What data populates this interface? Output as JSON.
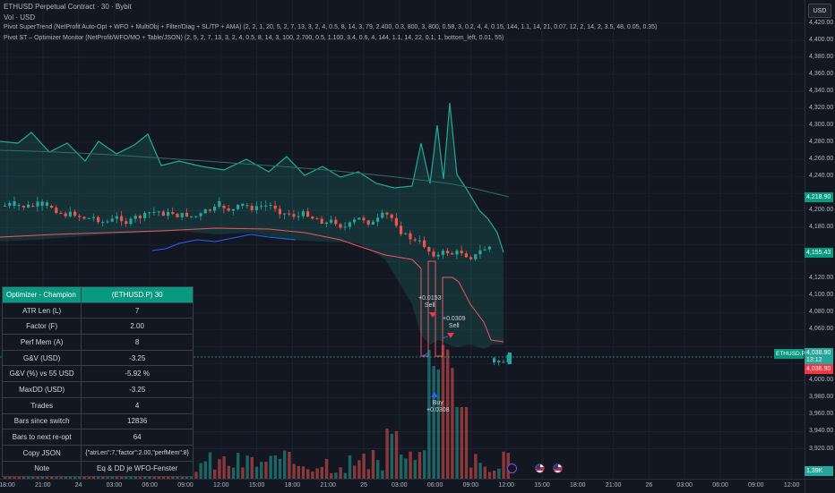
{
  "header": {
    "symbol_line": "ETHUSD Perpetual Contract · 30 · Bybit",
    "vol_line": "Vol · USD",
    "indicator1": "Pivot SuperTrend (NetProfit Auto-Opt + WFO + MultiObj + Filter/Diag + SL/TP + AMA) (2, 2, 1, 20, 5, 2, 7, 13, 3, 2, 4, 0.5, 8, 14, 3, 79, 2.400, 0.3, 800, 3, 800, 0.58, 3, 0.2, 4, 4, 0.15, 144, 1.1, 14, 21, 0.07, 12, 2, 14, 2, 3.5, 48, 0.05, 0.35)",
    "indicator2": "Pivot ST – Optimizer Monitor (NetProfit/WFO/MO + Table/JSON) (2, 5, 2, 7, 13, 3, 2, 4, 0.5, 8, 14, 3, 100, 2.700, 0.5, 1.100, 3.4, 0.6, 4, 144, 1.1, 14, 22, 0.1, 1, bottom_left, 0.01, 55)"
  },
  "price_scale": {
    "currency_button": "USD",
    "ticks": [
      "4,420.00",
      "4,400.00",
      "4,380.00",
      "4,360.00",
      "4,340.00",
      "4,320.00",
      "4,300.00",
      "4,280.00",
      "4,260.00",
      "4,240.00",
      "4,200.00",
      "4,180.00",
      "4,120.00",
      "4,100.00",
      "4,080.00",
      "4,060.00",
      "4,000.00",
      "3,980.00",
      "3,960.00",
      "3,940.00",
      "3,920.00"
    ],
    "tags": {
      "upper_band": "4,218.90",
      "mid_band": "4,155.43",
      "last_price": "4,038.90",
      "countdown": "13:12",
      "trail": "4,036.90",
      "volume": "1,39K"
    },
    "symbol_tag": "ETHUSD.P"
  },
  "time_axis": [
    "18:00",
    "21:00",
    "24",
    "03:00",
    "06:00",
    "09:00",
    "12:00",
    "15:00",
    "18:00",
    "21:00",
    "25",
    "03:00",
    "06:00",
    "09:00",
    "12:00",
    "15:00",
    "18:00",
    "21:00",
    "26",
    "03:00",
    "06:00",
    "09:00",
    "12:00"
  ],
  "signals": {
    "sell1": {
      "value": "+0.0153",
      "label": "Sell"
    },
    "sell2": {
      "value": "+0.0309",
      "label": "Sell"
    },
    "buy": {
      "label": "Buy",
      "value": "+0.0308"
    }
  },
  "table": {
    "title": "Optimizer - Champion",
    "symbol": "(ETHUSD.P) 30",
    "rows": [
      {
        "label": "ATR Len (L)",
        "value": "7"
      },
      {
        "label": "Factor (F)",
        "value": "2.00"
      },
      {
        "label": "Perf Mem (A)",
        "value": "8"
      },
      {
        "label": "G&V (USD)",
        "value": "-3.25"
      },
      {
        "label": "G&V (%)  vs 55 USD",
        "value": "-5.92 %"
      },
      {
        "label": "MaxDD (USD)",
        "value": "-3.25"
      },
      {
        "label": "Trades",
        "value": "4"
      },
      {
        "label": "Bars since switch",
        "value": "12836"
      },
      {
        "label": "Bars to next re-opt",
        "value": "64"
      },
      {
        "label": "Copy JSON",
        "value": "{\"atrLen\":7,\"factor\":2.00,\"perfMem\":8}"
      },
      {
        "label": "Note",
        "value": "Eq & DD je WFO-Fenster"
      }
    ]
  },
  "colors": {
    "background": "#131722",
    "bull": "#26a69a",
    "bear": "#ef5350",
    "band_line": "#22ab94",
    "trail_line": "#f7525f",
    "trend_blue": "#2962ff",
    "header_green": "#089981"
  }
}
